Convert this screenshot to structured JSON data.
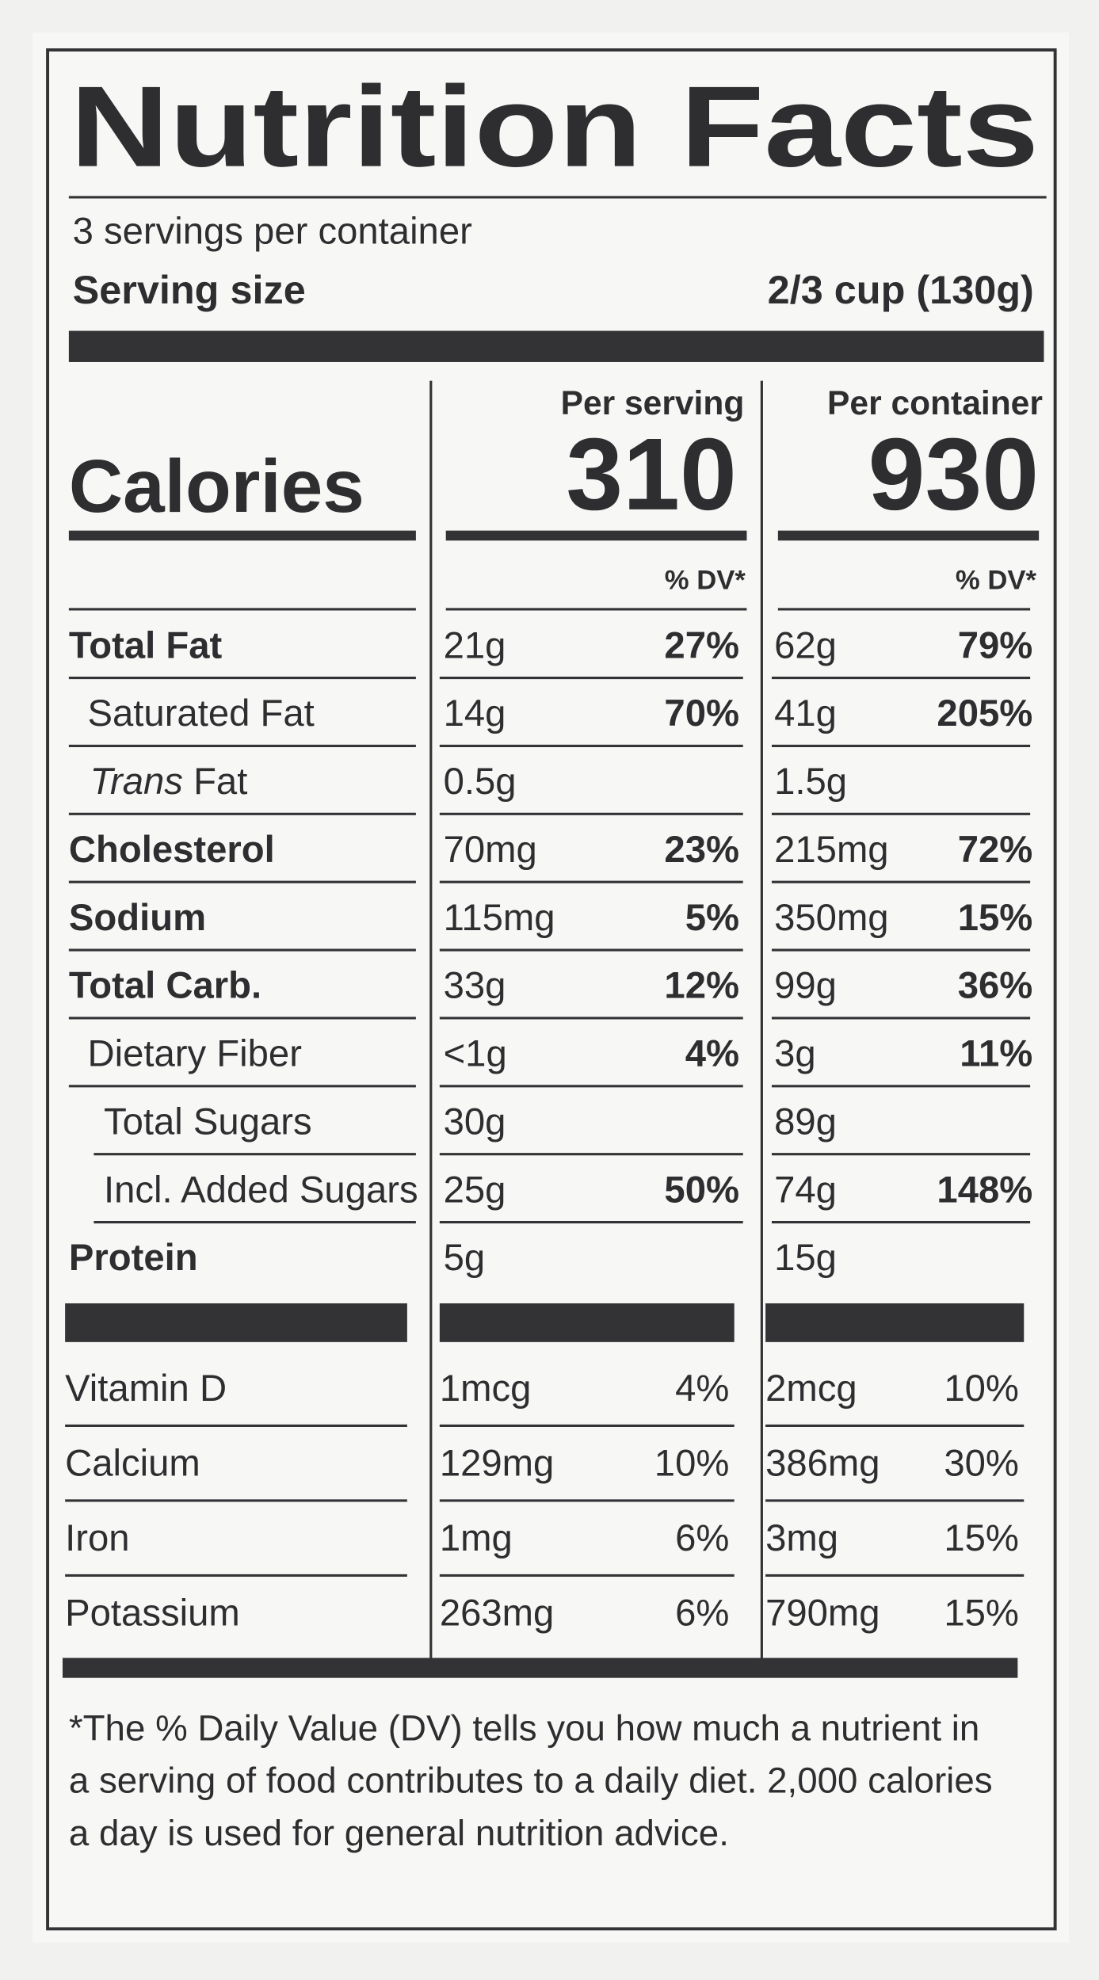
{
  "header": {
    "title": "Nutrition Facts",
    "servings": "3 servings per container",
    "serving_size_label": "Serving size",
    "serving_size_value": "2/3 cup (130g)"
  },
  "calories": {
    "label": "Calories",
    "per_serving_label": "Per serving",
    "per_serving": "310",
    "per_container_label": "Per container",
    "per_container": "930",
    "serving_dv_label": "% DV*",
    "container_dv_label": "% DV*"
  },
  "rows": [
    {
      "name": "Total Fat",
      "serving_amount": "21g",
      "serving_dv": "27%",
      "container_amount": "62g",
      "container_dv": "79%"
    },
    {
      "name": "Saturated Fat",
      "serving_amount": "14g",
      "serving_dv": "70%",
      "container_amount": "41g",
      "container_dv": "205%"
    },
    {
      "name_italic": "Trans",
      "name": "Fat",
      "serving_amount": "0.5g",
      "container_amount": "1.5g"
    },
    {
      "name": "Cholesterol",
      "serving_amount": "70mg",
      "serving_dv": "23%",
      "container_amount": "215mg",
      "container_dv": "72%"
    },
    {
      "name": "Sodium",
      "serving_amount": "115mg",
      "serving_dv": "5%",
      "container_amount": "350mg",
      "container_dv": "15%"
    },
    {
      "name": "Total Carb.",
      "serving_amount": "33g",
      "serving_dv": "12%",
      "container_amount": "99g",
      "container_dv": "36%"
    },
    {
      "name": "Dietary Fiber",
      "serving_amount": "<1g",
      "serving_dv": "4%",
      "container_amount": "3g",
      "container_dv": "11%"
    },
    {
      "name": "Total Sugars",
      "serving_amount": "30g",
      "container_amount": "89g"
    },
    {
      "name": "Incl. Added Sugars",
      "serving_amount": "25g",
      "serving_dv": "50%",
      "container_amount": "74g",
      "container_dv": "148%"
    },
    {
      "name": "Protein",
      "serving_amount": "5g",
      "container_amount": "15g"
    }
  ],
  "vitamins": [
    {
      "name": "Vitamin D",
      "serving_amount": "1mcg",
      "serving_dv": "4%",
      "container_amount": "2mcg",
      "container_dv": "10%"
    },
    {
      "name": "Calcium",
      "serving_amount": "129mg",
      "serving_dv": "10%",
      "container_amount": "386mg",
      "container_dv": "30%"
    },
    {
      "name": "Iron",
      "serving_amount": "1mg",
      "serving_dv": "6%",
      "container_amount": "3mg",
      "container_dv": "15%"
    },
    {
      "name": "Potassium",
      "serving_amount": "263mg",
      "serving_dv": "6%",
      "container_amount": "790mg",
      "container_dv": "15%"
    }
  ],
  "footnote": [
    "*The % Daily Value (DV) tells you how much a nutrient in",
    "a serving of food contributes to a daily diet. 2,000 calories",
    "a day is used for general nutrition advice."
  ]
}
